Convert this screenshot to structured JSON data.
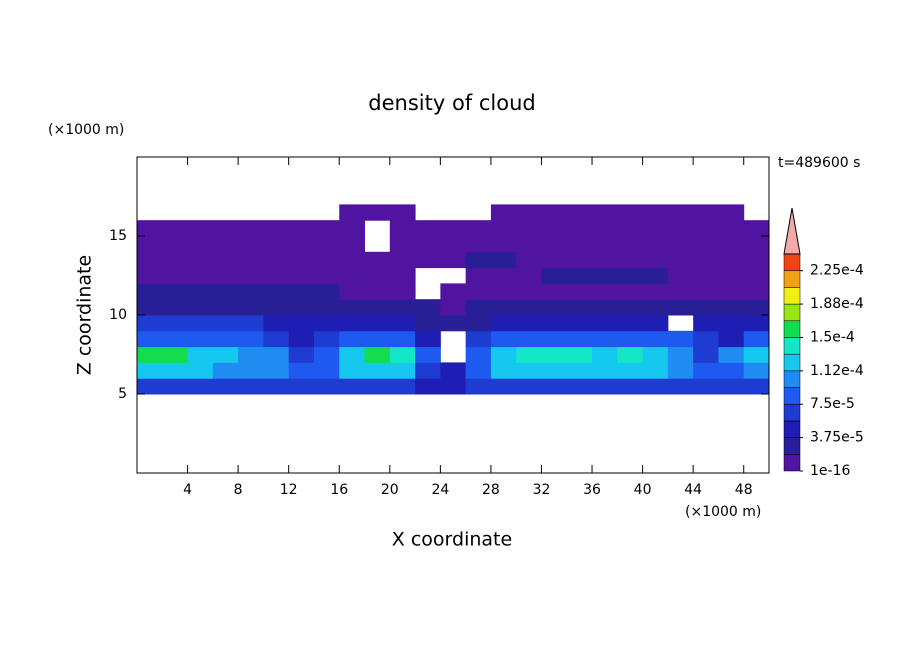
{
  "chart_data": {
    "type": "contour",
    "title": "density of cloud",
    "x_label": "X coordinate",
    "y_label": "Z coordinate",
    "x_unit": "(×1000 m)",
    "y_unit": "(×1000 m)",
    "annotation": "t=489600 s",
    "xlim": [
      0,
      50
    ],
    "ylim": [
      0,
      20
    ],
    "xticks": [
      4,
      8,
      12,
      16,
      20,
      24,
      28,
      32,
      36,
      40,
      44,
      48
    ],
    "yticks": [
      5,
      10,
      15
    ],
    "x": [
      1,
      3,
      5,
      7,
      9,
      11,
      13,
      15,
      17,
      19,
      21,
      23,
      25,
      27,
      29,
      31,
      33,
      35,
      37,
      39,
      41,
      43,
      45,
      47,
      49
    ],
    "y": [
      5.5,
      6.5,
      7.5,
      8.5,
      9.5,
      10.5,
      11.5,
      12.5,
      13.5,
      14.5,
      15.5,
      16.5
    ],
    "z": [
      [
        7e-05,
        7e-05,
        7e-05,
        7e-05,
        7e-05,
        7e-05,
        6e-05,
        7e-05,
        7e-05,
        7e-05,
        7e-05,
        5e-05,
        4e-05,
        7e-05,
        7e-05,
        7e-05,
        7e-05,
        7e-05,
        7e-05,
        7e-05,
        7e-05,
        7e-05,
        6e-05,
        7e-05,
        7e-05
      ],
      [
        0.00012,
        0.00012,
        0.00012,
        0.00011,
        0.00011,
        0.00011,
        8e-05,
        9e-05,
        0.000115,
        0.000115,
        0.000115,
        7e-05,
        4e-05,
        8e-05,
        0.000115,
        0.000115,
        0.000115,
        0.000115,
        0.000115,
        0.000115,
        0.000115,
        0.0001,
        8e-05,
        9e-05,
        0.00011
      ],
      [
        0.00015,
        0.00016,
        0.00013,
        0.000115,
        0.00011,
        0.0001,
        6e-05,
        8e-05,
        0.00013,
        0.00016,
        0.000135,
        8e-05,
        null,
        9e-05,
        0.00013,
        0.000135,
        0.00014,
        0.000135,
        0.00013,
        0.000135,
        0.00012,
        0.0001,
        7e-05,
        0.00011,
        0.000125
      ],
      [
        9e-05,
        9e-05,
        9e-05,
        9e-05,
        8e-05,
        6e-05,
        5e-05,
        6e-05,
        8e-05,
        8e-05,
        8e-05,
        5e-05,
        null,
        6e-05,
        9e-05,
        9e-05,
        9e-05,
        9e-05,
        9e-05,
        9e-05,
        9e-05,
        8e-05,
        6e-05,
        5e-05,
        8e-05
      ],
      [
        6e-05,
        6e-05,
        6e-05,
        6e-05,
        6e-05,
        5e-05,
        4.5e-05,
        4.5e-05,
        4.5e-05,
        4.5e-05,
        4e-05,
        3e-05,
        2e-05,
        3e-05,
        5e-05,
        5e-05,
        5e-05,
        5e-05,
        5e-05,
        5e-05,
        5e-05,
        null,
        4e-05,
        5.5e-05,
        5.5e-05
      ],
      [
        3.5e-05,
        3.5e-05,
        3.5e-05,
        3.5e-05,
        3.5e-05,
        3e-05,
        3e-05,
        3e-05,
        3e-05,
        3e-05,
        3e-05,
        2e-05,
        1.5e-05,
        2.5e-05,
        3e-05,
        3e-05,
        3e-05,
        3e-05,
        3e-05,
        3e-05,
        3e-05,
        2e-05,
        3e-05,
        3e-05,
        3e-05
      ],
      [
        2e-05,
        2e-05,
        2e-05,
        2e-05,
        2e-05,
        2e-05,
        2e-05,
        2e-05,
        1.8e-05,
        1.8e-05,
        1.8e-05,
        null,
        1.8e-05,
        1.8e-05,
        1.8e-05,
        1.8e-05,
        1.8e-05,
        1.8e-05,
        1.8e-05,
        1.8e-05,
        1.8e-05,
        1.8e-05,
        1.8e-05,
        1.8e-05,
        1.8e-05
      ],
      [
        1.6e-05,
        1.6e-05,
        1.6e-05,
        1.6e-05,
        1.6e-05,
        1.6e-05,
        1.6e-05,
        1.6e-05,
        1.6e-05,
        1.6e-05,
        1.6e-05,
        null,
        null,
        1.6e-05,
        1.6e-05,
        1.6e-05,
        2.2e-05,
        2.2e-05,
        2.2e-05,
        2.2e-05,
        2.2e-05,
        1.6e-05,
        1.6e-05,
        1.6e-05,
        1.6e-05
      ],
      [
        1.5e-05,
        1.5e-05,
        1.5e-05,
        1.5e-05,
        1.5e-05,
        1.5e-05,
        1.5e-05,
        1.5e-05,
        1.5e-05,
        1.5e-05,
        1.5e-05,
        1.5e-05,
        1.5e-05,
        2.2e-05,
        2.2e-05,
        1.5e-05,
        1.5e-05,
        1.5e-05,
        1.5e-05,
        1.5e-05,
        1.5e-05,
        1.5e-05,
        1.5e-05,
        1.5e-05,
        1.5e-05
      ],
      [
        1.2e-05,
        1.2e-05,
        1.2e-05,
        1.2e-05,
        1.2e-05,
        1.2e-05,
        1.2e-05,
        1.2e-05,
        1.2e-05,
        null,
        1.2e-05,
        1.2e-05,
        1.2e-05,
        1.2e-05,
        1.2e-05,
        1.2e-05,
        1.2e-05,
        1.2e-05,
        1.2e-05,
        1.2e-05,
        1.2e-05,
        1.2e-05,
        1.2e-05,
        1.2e-05,
        1.2e-05
      ],
      [
        1e-05,
        1e-05,
        1e-05,
        1e-05,
        1e-05,
        1e-05,
        1e-05,
        1e-05,
        1e-05,
        null,
        1e-05,
        1e-05,
        1e-05,
        1e-05,
        1e-05,
        1e-05,
        1e-05,
        1e-05,
        1e-05,
        1e-05,
        1e-05,
        1e-05,
        1e-05,
        1e-05,
        1e-05
      ],
      [
        null,
        null,
        null,
        null,
        null,
        null,
        null,
        null,
        8e-06,
        8e-06,
        8e-06,
        null,
        null,
        null,
        8e-06,
        8e-06,
        8e-06,
        8e-06,
        8e-06,
        8e-06,
        8e-06,
        8e-06,
        8e-06,
        8e-06,
        null
      ]
    ],
    "colorbar": {
      "levels": [
        1e-16,
        1.875e-05,
        3.75e-05,
        5.625e-05,
        7.5e-05,
        9.375e-05,
        0.0001125,
        0.00013125,
        0.00015,
        0.00016875,
        0.0001875,
        0.00020625,
        0.000225,
        0.00024375
      ],
      "colors": [
        "#5014a0",
        "#281e96",
        "#1e1eb4",
        "#1e3cd2",
        "#1e5af0",
        "#1e8cf0",
        "#14c8f0",
        "#14e6c8",
        "#14dc50",
        "#96e614",
        "#f0f014",
        "#f0a014",
        "#f04614"
      ],
      "extend_color": "#f4a8a8",
      "ticks": [
        1e-16,
        {
          "value": 3.75e-05,
          "label": "3.75e-5"
        },
        {
          "value": 7.5e-05,
          "label": "7.5e-5"
        },
        {
          "value": 0.0001125,
          "label": "1.12e-4"
        },
        {
          "value": 0.00015,
          "label": "1.5e-4"
        },
        {
          "value": 0.0001875,
          "label": "1.88e-4"
        },
        {
          "value": 0.000225,
          "label": "2.25e-4"
        }
      ]
    }
  }
}
